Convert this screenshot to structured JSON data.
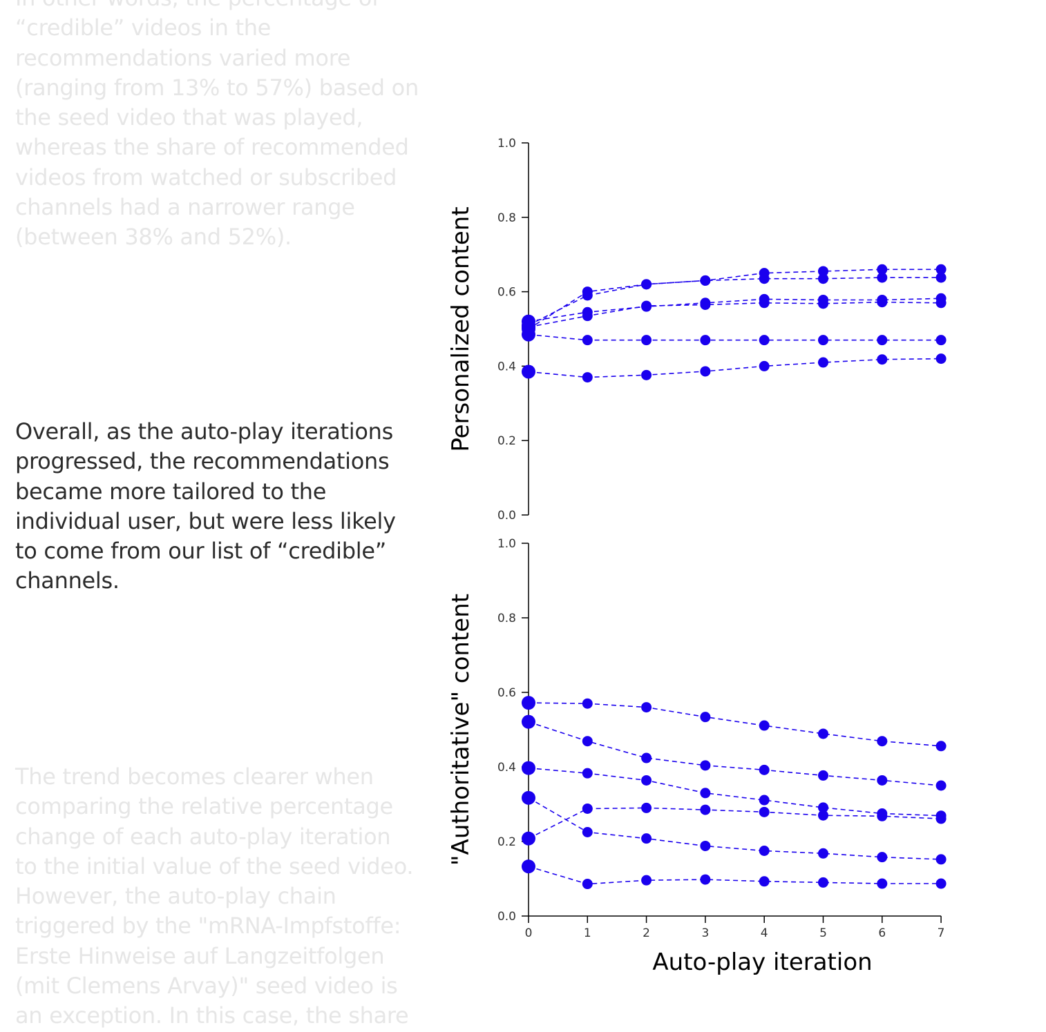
{
  "text": {
    "para_top": "In other words, the percentage of\n“credible” videos in the\nrecommendations varied more\n(ranging from 13% to 57%) based on\nthe seed video that was played,\nwhereas the share of recommended\nvideos from watched or subscribed\nchannels had a narrower range\n(between 38% and 52%).",
    "para_mid": "Overall, as the auto-play iterations\nprogressed, the recommendations\nbecame more tailored to the\nindividual user, but were less likely\nto come from our list of “credible”\nchannels.",
    "para_bottom": "The trend becomes clearer when\ncomparing the relative percentage\nchange of each auto-play iteration\nto the initial value of the seed video.\nHowever, the auto-play chain\ntriggered by the \"mRNA-Impfstoffe:\nErste Hinweise auf Langzeitfolgen\n(mit Clemens Arvay)\" seed video is\nan exception. In this case, the share"
  },
  "colors": {
    "series": "#1a00ee",
    "faded_text": "#e6e6e6",
    "active_text": "#2b2b2b",
    "axis": "#000000"
  },
  "chart_data": [
    {
      "type": "line",
      "ylabel": "Personalized content",
      "xlabel": "",
      "ylim": [
        0,
        1
      ],
      "yticks": [
        "0.0",
        "0.2",
        "0.4",
        "0.6",
        "0.8",
        "1.0"
      ],
      "x": [
        0,
        1,
        2,
        3,
        4,
        5,
        6,
        7
      ],
      "line_style": "dashed",
      "grid": false,
      "series": [
        {
          "values": [
            0.5,
            0.6,
            0.62,
            0.63,
            0.635,
            0.635,
            0.638,
            0.638
          ]
        },
        {
          "values": [
            0.51,
            0.59,
            0.62,
            0.63,
            0.65,
            0.655,
            0.66,
            0.66
          ]
        },
        {
          "values": [
            0.52,
            0.545,
            0.56,
            0.57,
            0.58,
            0.578,
            0.578,
            0.582
          ]
        },
        {
          "values": [
            0.505,
            0.535,
            0.562,
            0.565,
            0.57,
            0.568,
            0.572,
            0.57
          ]
        },
        {
          "values": [
            0.485,
            0.47,
            0.47,
            0.47,
            0.47,
            0.47,
            0.47,
            0.47
          ]
        },
        {
          "values": [
            0.385,
            0.37,
            0.376,
            0.386,
            0.4,
            0.41,
            0.418,
            0.42
          ]
        }
      ]
    },
    {
      "type": "line",
      "ylabel": "\"Authoritative\" content",
      "xlabel": "Auto-play iteration",
      "ylim": [
        0,
        1
      ],
      "yticks": [
        "0.0",
        "0.2",
        "0.4",
        "0.6",
        "0.8",
        "1.0"
      ],
      "xticks": [
        "0",
        "1",
        "2",
        "3",
        "4",
        "5",
        "6",
        "7"
      ],
      "x": [
        0,
        1,
        2,
        3,
        4,
        5,
        6,
        7
      ],
      "line_style": "dashed",
      "grid": false,
      "series": [
        {
          "values": [
            0.572,
            0.57,
            0.56,
            0.534,
            0.511,
            0.489,
            0.469,
            0.456
          ]
        },
        {
          "values": [
            0.521,
            0.469,
            0.424,
            0.404,
            0.392,
            0.377,
            0.364,
            0.35
          ]
        },
        {
          "values": [
            0.397,
            0.383,
            0.364,
            0.33,
            0.311,
            0.291,
            0.275,
            0.269
          ]
        },
        {
          "values": [
            0.317,
            0.225,
            0.208,
            0.188,
            0.175,
            0.168,
            0.158,
            0.152
          ]
        },
        {
          "values": [
            0.208,
            0.288,
            0.29,
            0.285,
            0.279,
            0.27,
            0.268,
            0.261
          ]
        },
        {
          "values": [
            0.133,
            0.086,
            0.096,
            0.098,
            0.093,
            0.09,
            0.087,
            0.087
          ]
        }
      ]
    }
  ]
}
